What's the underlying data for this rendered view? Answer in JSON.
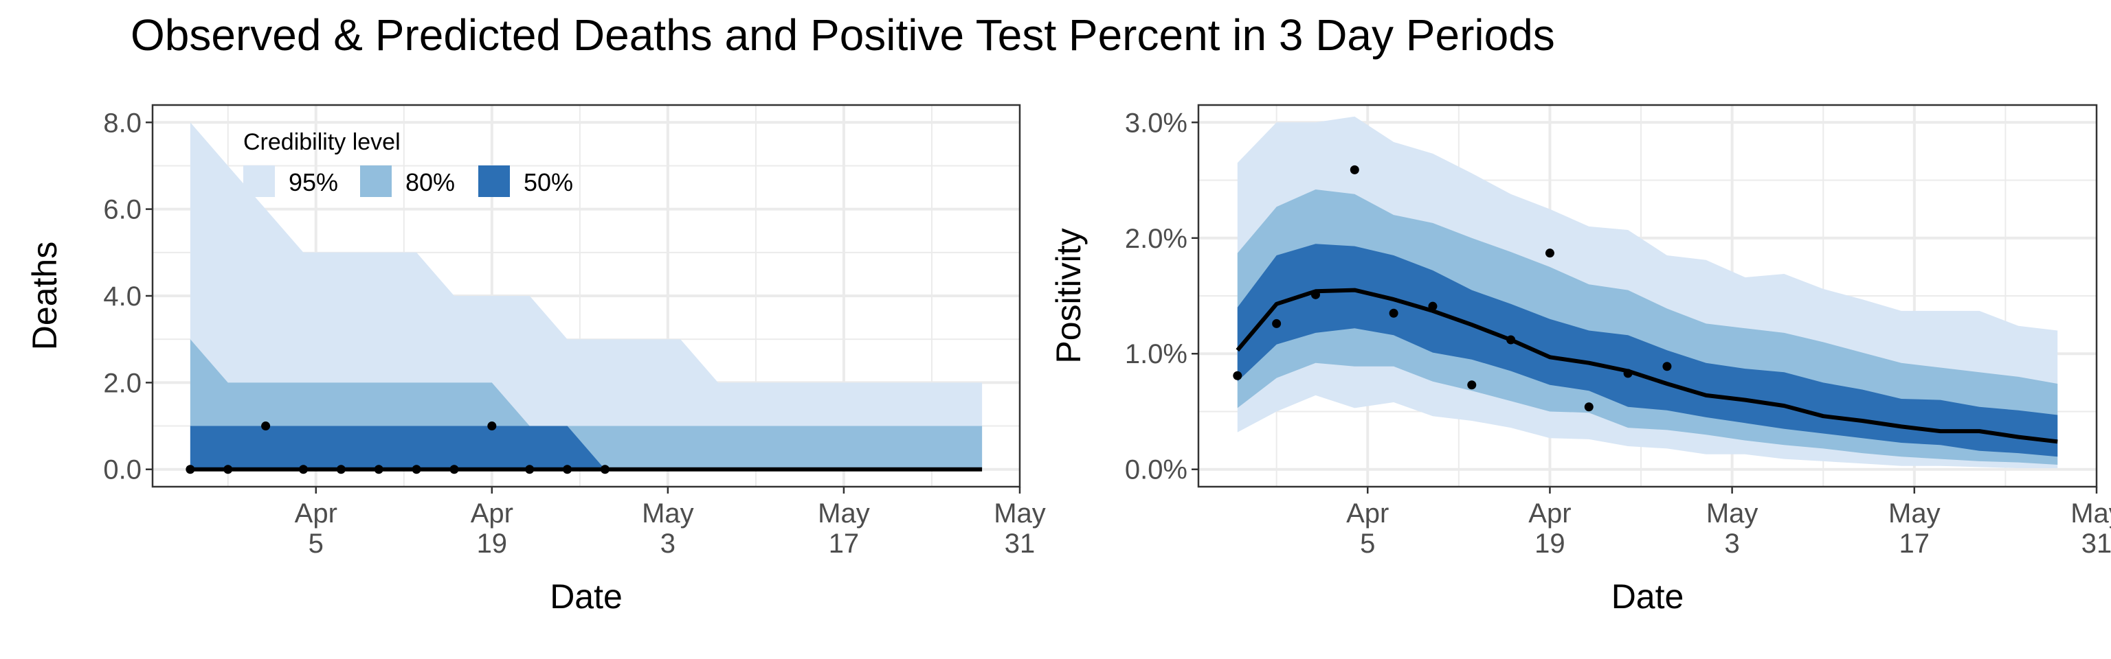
{
  "title": "Observed & Predicted Deaths and Positive Test Percent in 3 Day Periods",
  "colors": {
    "band95": "#d8e6f5",
    "band80": "#92bedd",
    "band50": "#2c6fb4",
    "median": "#000000",
    "points": "#000000",
    "grid": "#ebebeb"
  },
  "chart_data": [
    {
      "type": "area",
      "xlabel": "Date",
      "ylabel": "Deaths",
      "xlim": [
        "2020-03-23",
        "2020-05-31"
      ],
      "ylim": [
        -0.4,
        8.4
      ],
      "x_ticks": [
        {
          "date": "2020-04-05",
          "line1": "Apr",
          "line2": "5"
        },
        {
          "date": "2020-04-19",
          "line1": "Apr",
          "line2": "19"
        },
        {
          "date": "2020-05-03",
          "line1": "May",
          "line2": "3"
        },
        {
          "date": "2020-05-17",
          "line1": "May",
          "line2": "17"
        },
        {
          "date": "2020-05-31",
          "line1": "May",
          "line2": "31"
        }
      ],
      "y_ticks": [
        {
          "value": 0,
          "label": "0.0"
        },
        {
          "value": 2,
          "label": "2.0"
        },
        {
          "value": 4,
          "label": "4.0"
        },
        {
          "value": 6,
          "label": "6.0"
        },
        {
          "value": 8,
          "label": "8.0"
        }
      ],
      "grid": true,
      "legend": {
        "title": "Credibility level",
        "placement": "top-left",
        "items": [
          {
            "label": "95%",
            "color": "#d8e6f5"
          },
          {
            "label": "80%",
            "color": "#92bedd"
          },
          {
            "label": "50%",
            "color": "#2c6fb4"
          }
        ]
      },
      "x": [
        "2020-03-26",
        "2020-03-29",
        "2020-04-01",
        "2020-04-04",
        "2020-04-07",
        "2020-04-10",
        "2020-04-13",
        "2020-04-16",
        "2020-04-19",
        "2020-04-22",
        "2020-04-25",
        "2020-04-28",
        "2020-05-01",
        "2020-05-04",
        "2020-05-07",
        "2020-05-10",
        "2020-05-13",
        "2020-05-16",
        "2020-05-19",
        "2020-05-22",
        "2020-05-25",
        "2020-05-28"
      ],
      "bands": [
        {
          "level": "95%",
          "lower": [
            0,
            0,
            0,
            0,
            0,
            0,
            0,
            0,
            0,
            0,
            0,
            0,
            0,
            0,
            0,
            0,
            0,
            0,
            0,
            0,
            0,
            0
          ],
          "upper": [
            8,
            7,
            6,
            5,
            5,
            5,
            5,
            4,
            4,
            4,
            3,
            3,
            3,
            3,
            2,
            2,
            2,
            2,
            2,
            2,
            2,
            2
          ]
        },
        {
          "level": "80%",
          "lower": [
            0,
            0,
            0,
            0,
            0,
            0,
            0,
            0,
            0,
            0,
            0,
            0,
            0,
            0,
            0,
            0,
            0,
            0,
            0,
            0,
            0,
            0
          ],
          "upper": [
            3,
            2,
            2,
            2,
            2,
            2,
            2,
            2,
            2,
            1,
            1,
            1,
            1,
            1,
            1,
            1,
            1,
            1,
            1,
            1,
            1,
            1
          ]
        },
        {
          "level": "50%",
          "lower": [
            0,
            0,
            0,
            0,
            0,
            0,
            0,
            0,
            0,
            0,
            0,
            0,
            0,
            0,
            0,
            0,
            0,
            0,
            0,
            0,
            0,
            0
          ],
          "upper": [
            1,
            1,
            1,
            1,
            1,
            1,
            1,
            1,
            1,
            1,
            1,
            0,
            0,
            0,
            0,
            0,
            0,
            0,
            0,
            0,
            0,
            0
          ]
        }
      ],
      "median": [
        0,
        0,
        0,
        0,
        0,
        0,
        0,
        0,
        0,
        0,
        0,
        0,
        0,
        0,
        0,
        0,
        0,
        0,
        0,
        0,
        0,
        0
      ],
      "observed": {
        "x": [
          "2020-03-26",
          "2020-03-29",
          "2020-04-01",
          "2020-04-04",
          "2020-04-07",
          "2020-04-10",
          "2020-04-13",
          "2020-04-16",
          "2020-04-19",
          "2020-04-22",
          "2020-04-25",
          "2020-04-28"
        ],
        "y": [
          0,
          0,
          1,
          0,
          0,
          0,
          0,
          0,
          1,
          0,
          0,
          0
        ]
      }
    },
    {
      "type": "area",
      "xlabel": "Date",
      "ylabel": "Positivity",
      "xlim": [
        "2020-03-23",
        "2020-05-31"
      ],
      "ylim": [
        -0.0015,
        0.0315
      ],
      "x_ticks": [
        {
          "date": "2020-04-05",
          "line1": "Apr",
          "line2": "5"
        },
        {
          "date": "2020-04-19",
          "line1": "Apr",
          "line2": "19"
        },
        {
          "date": "2020-05-03",
          "line1": "May",
          "line2": "3"
        },
        {
          "date": "2020-05-17",
          "line1": "May",
          "line2": "17"
        },
        {
          "date": "2020-05-31",
          "line1": "May",
          "line2": "31"
        }
      ],
      "y_ticks": [
        {
          "value": 0,
          "label": "0.0%"
        },
        {
          "value": 0.01,
          "label": "1.0%"
        },
        {
          "value": 0.02,
          "label": "2.0%"
        },
        {
          "value": 0.03,
          "label": "3.0%"
        }
      ],
      "grid": true,
      "x": [
        "2020-03-26",
        "2020-03-29",
        "2020-04-01",
        "2020-04-04",
        "2020-04-07",
        "2020-04-10",
        "2020-04-13",
        "2020-04-16",
        "2020-04-19",
        "2020-04-22",
        "2020-04-25",
        "2020-04-28",
        "2020-05-01",
        "2020-05-04",
        "2020-05-07",
        "2020-05-10",
        "2020-05-13",
        "2020-05-16",
        "2020-05-19",
        "2020-05-22",
        "2020-05-25",
        "2020-05-28"
      ],
      "bands": [
        {
          "level": "95%",
          "lower": [
            0.0032,
            0.005,
            0.0064,
            0.0053,
            0.0058,
            0.0046,
            0.0042,
            0.0036,
            0.0027,
            0.0026,
            0.002,
            0.0018,
            0.0013,
            0.0013,
            0.0009,
            0.0007,
            0.0005,
            0.0003,
            0.0003,
            0.0002,
            0.0001,
            0.0001
          ],
          "upper": [
            0.0265,
            0.03,
            0.03,
            0.0305,
            0.0283,
            0.0273,
            0.0256,
            0.0238,
            0.0225,
            0.021,
            0.0207,
            0.0185,
            0.0181,
            0.0166,
            0.0169,
            0.0156,
            0.0147,
            0.0137,
            0.0137,
            0.0137,
            0.0124,
            0.012
          ]
        },
        {
          "level": "80%",
          "lower": [
            0.0053,
            0.0079,
            0.0092,
            0.0089,
            0.0089,
            0.0076,
            0.0068,
            0.0059,
            0.005,
            0.0049,
            0.0036,
            0.0034,
            0.003,
            0.0025,
            0.0021,
            0.0018,
            0.0014,
            0.0011,
            0.0009,
            0.0007,
            0.0006,
            0.0004
          ],
          "upper": [
            0.0187,
            0.0227,
            0.0242,
            0.0238,
            0.022,
            0.0213,
            0.02,
            0.0188,
            0.0175,
            0.016,
            0.0155,
            0.0139,
            0.0126,
            0.0122,
            0.0118,
            0.011,
            0.0101,
            0.0092,
            0.0088,
            0.0084,
            0.008,
            0.0074
          ]
        },
        {
          "level": "50%",
          "lower": [
            0.0076,
            0.0108,
            0.0118,
            0.0122,
            0.0116,
            0.0101,
            0.0095,
            0.0085,
            0.0073,
            0.0068,
            0.0054,
            0.0051,
            0.0045,
            0.004,
            0.0035,
            0.0031,
            0.0027,
            0.0023,
            0.0021,
            0.0016,
            0.0014,
            0.0011
          ],
          "upper": [
            0.014,
            0.0185,
            0.0195,
            0.0193,
            0.0185,
            0.0172,
            0.0155,
            0.0143,
            0.013,
            0.012,
            0.0116,
            0.0103,
            0.0092,
            0.0087,
            0.0084,
            0.0075,
            0.0069,
            0.0061,
            0.006,
            0.0054,
            0.0051,
            0.0047
          ]
        }
      ],
      "median": [
        0.0103,
        0.0143,
        0.0154,
        0.0155,
        0.0147,
        0.0137,
        0.0125,
        0.0112,
        0.0097,
        0.0092,
        0.0085,
        0.0074,
        0.0064,
        0.006,
        0.0055,
        0.0046,
        0.0042,
        0.0037,
        0.0033,
        0.0033,
        0.0028,
        0.0024
      ],
      "observed": {
        "x": [
          "2020-03-26",
          "2020-03-29",
          "2020-04-01",
          "2020-04-04",
          "2020-04-07",
          "2020-04-10",
          "2020-04-13",
          "2020-04-16",
          "2020-04-19",
          "2020-04-22",
          "2020-04-25",
          "2020-04-28"
        ],
        "y": [
          0.0081,
          0.0126,
          0.0151,
          0.0259,
          0.0135,
          0.0141,
          0.0073,
          0.0112,
          0.0187,
          0.0054,
          0.0083,
          0.0089
        ]
      }
    }
  ]
}
